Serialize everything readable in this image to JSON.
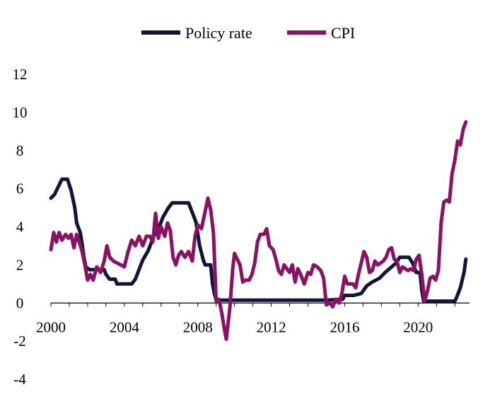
{
  "chart_data": {
    "type": "line",
    "title": "",
    "xlabel": "",
    "ylabel": "",
    "legend_position": "top-center",
    "xlim": [
      2000,
      2022.8
    ],
    "ylim": [
      -4,
      12
    ],
    "grid": false,
    "x_ticks": [
      2000,
      2004,
      2008,
      2012,
      2016,
      2020
    ],
    "x_tick_labels": [
      "2000",
      "2004",
      "2008",
      "2012",
      "2016",
      "2020"
    ],
    "y_ticks": [
      -4,
      -2,
      0,
      2,
      4,
      6,
      8,
      10,
      12
    ],
    "y_tick_labels": [
      "-4",
      "-2",
      "0",
      "2",
      "4",
      "6",
      "8",
      "10",
      "12"
    ],
    "series": [
      {
        "name": "Policy rate",
        "color": "#0f1638",
        "points": [
          [
            2000.0,
            5.5
          ],
          [
            2000.2,
            5.7
          ],
          [
            2000.4,
            6.1
          ],
          [
            2000.6,
            6.5
          ],
          [
            2000.9,
            6.5
          ],
          [
            2001.1,
            5.9
          ],
          [
            2001.3,
            5.0
          ],
          [
            2001.4,
            4.2
          ],
          [
            2001.6,
            3.7
          ],
          [
            2001.7,
            3.1
          ],
          [
            2001.8,
            2.4
          ],
          [
            2001.9,
            1.9
          ],
          [
            2002.1,
            1.75
          ],
          [
            2002.5,
            1.75
          ],
          [
            2002.9,
            1.75
          ],
          [
            2003.0,
            1.5
          ],
          [
            2003.2,
            1.25
          ],
          [
            2003.5,
            1.25
          ],
          [
            2003.6,
            1.0
          ],
          [
            2004.0,
            1.0
          ],
          [
            2004.4,
            1.0
          ],
          [
            2004.6,
            1.25
          ],
          [
            2004.8,
            1.75
          ],
          [
            2005.0,
            2.25
          ],
          [
            2005.3,
            2.75
          ],
          [
            2005.6,
            3.5
          ],
          [
            2005.9,
            4.0
          ],
          [
            2006.1,
            4.5
          ],
          [
            2006.4,
            5.0
          ],
          [
            2006.6,
            5.25
          ],
          [
            2007.0,
            5.25
          ],
          [
            2007.3,
            5.25
          ],
          [
            2007.5,
            5.25
          ],
          [
            2007.7,
            4.75
          ],
          [
            2007.9,
            4.25
          ],
          [
            2008.1,
            3.0
          ],
          [
            2008.3,
            2.25
          ],
          [
            2008.4,
            2.0
          ],
          [
            2008.7,
            2.0
          ],
          [
            2008.8,
            1.0
          ],
          [
            2008.9,
            0.5
          ],
          [
            2009.0,
            0.15
          ],
          [
            2010.0,
            0.15
          ],
          [
            2011.0,
            0.15
          ],
          [
            2012.0,
            0.15
          ],
          [
            2013.0,
            0.15
          ],
          [
            2014.0,
            0.15
          ],
          [
            2015.0,
            0.15
          ],
          [
            2015.9,
            0.2
          ],
          [
            2016.0,
            0.4
          ],
          [
            2016.5,
            0.4
          ],
          [
            2016.9,
            0.5
          ],
          [
            2017.2,
            0.9
          ],
          [
            2017.5,
            1.1
          ],
          [
            2017.9,
            1.3
          ],
          [
            2018.2,
            1.6
          ],
          [
            2018.5,
            1.85
          ],
          [
            2018.8,
            2.1
          ],
          [
            2019.0,
            2.4
          ],
          [
            2019.5,
            2.4
          ],
          [
            2019.7,
            2.1
          ],
          [
            2019.9,
            1.6
          ],
          [
            2020.1,
            1.6
          ],
          [
            2020.2,
            0.65
          ],
          [
            2020.3,
            0.1
          ],
          [
            2020.5,
            0.1
          ],
          [
            2021.0,
            0.1
          ],
          [
            2022.0,
            0.1
          ],
          [
            2022.1,
            0.3
          ],
          [
            2022.3,
            0.8
          ],
          [
            2022.5,
            1.6
          ],
          [
            2022.6,
            2.3
          ]
        ]
      },
      {
        "name": "CPI",
        "color": "#8b1163",
        "points": [
          [
            2000.0,
            2.8
          ],
          [
            2000.15,
            3.7
          ],
          [
            2000.3,
            3.2
          ],
          [
            2000.45,
            3.7
          ],
          [
            2000.6,
            3.3
          ],
          [
            2000.8,
            3.6
          ],
          [
            2000.95,
            3.4
          ],
          [
            2001.1,
            3.6
          ],
          [
            2001.25,
            2.9
          ],
          [
            2001.4,
            3.6
          ],
          [
            2001.55,
            3.2
          ],
          [
            2001.7,
            2.7
          ],
          [
            2001.85,
            2.0
          ],
          [
            2002.0,
            1.2
          ],
          [
            2002.15,
            1.5
          ],
          [
            2002.3,
            1.2
          ],
          [
            2002.5,
            1.9
          ],
          [
            2002.7,
            1.6
          ],
          [
            2002.9,
            2.2
          ],
          [
            2003.05,
            3.0
          ],
          [
            2003.2,
            2.4
          ],
          [
            2003.4,
            2.2
          ],
          [
            2003.6,
            2.1
          ],
          [
            2003.8,
            2.0
          ],
          [
            2004.0,
            1.9
          ],
          [
            2004.2,
            2.7
          ],
          [
            2004.4,
            3.3
          ],
          [
            2004.6,
            3.0
          ],
          [
            2004.8,
            3.5
          ],
          [
            2005.0,
            3.0
          ],
          [
            2005.2,
            3.5
          ],
          [
            2005.4,
            3.5
          ],
          [
            2005.55,
            3.2
          ],
          [
            2005.7,
            4.7
          ],
          [
            2005.85,
            3.4
          ],
          [
            2006.0,
            4.0
          ],
          [
            2006.2,
            3.5
          ],
          [
            2006.35,
            4.2
          ],
          [
            2006.5,
            3.8
          ],
          [
            2006.65,
            2.4
          ],
          [
            2006.8,
            2.0
          ],
          [
            2006.95,
            2.5
          ],
          [
            2007.1,
            2.7
          ],
          [
            2007.3,
            2.4
          ],
          [
            2007.5,
            2.7
          ],
          [
            2007.7,
            2.2
          ],
          [
            2007.85,
            3.5
          ],
          [
            2008.0,
            4.1
          ],
          [
            2008.2,
            3.9
          ],
          [
            2008.4,
            4.8
          ],
          [
            2008.55,
            5.5
          ],
          [
            2008.7,
            4.9
          ],
          [
            2008.85,
            3.7
          ],
          [
            2009.0,
            0.1
          ],
          [
            2009.15,
            0.2
          ],
          [
            2009.3,
            -0.5
          ],
          [
            2009.45,
            -1.4
          ],
          [
            2009.55,
            -1.9
          ],
          [
            2009.75,
            -0.2
          ],
          [
            2009.9,
            1.8
          ],
          [
            2010.0,
            2.6
          ],
          [
            2010.15,
            2.3
          ],
          [
            2010.3,
            2.0
          ],
          [
            2010.45,
            1.1
          ],
          [
            2010.6,
            1.2
          ],
          [
            2010.8,
            1.2
          ],
          [
            2010.95,
            1.5
          ],
          [
            2011.1,
            2.1
          ],
          [
            2011.25,
            3.2
          ],
          [
            2011.4,
            3.6
          ],
          [
            2011.6,
            3.6
          ],
          [
            2011.75,
            3.9
          ],
          [
            2011.9,
            3.0
          ],
          [
            2012.1,
            2.8
          ],
          [
            2012.25,
            2.3
          ],
          [
            2012.4,
            1.7
          ],
          [
            2012.55,
            1.5
          ],
          [
            2012.7,
            2.0
          ],
          [
            2012.85,
            1.8
          ],
          [
            2013.0,
            1.6
          ],
          [
            2013.15,
            2.0
          ],
          [
            2013.3,
            1.1
          ],
          [
            2013.45,
            1.8
          ],
          [
            2013.6,
            1.5
          ],
          [
            2013.8,
            1.0
          ],
          [
            2014.0,
            1.6
          ],
          [
            2014.15,
            1.5
          ],
          [
            2014.3,
            2.0
          ],
          [
            2014.5,
            1.9
          ],
          [
            2014.7,
            1.7
          ],
          [
            2014.85,
            1.3
          ],
          [
            2015.0,
            -0.1
          ],
          [
            2015.2,
            0.0
          ],
          [
            2015.35,
            -0.2
          ],
          [
            2015.5,
            0.2
          ],
          [
            2015.7,
            0.0
          ],
          [
            2015.85,
            0.5
          ],
          [
            2016.0,
            1.4
          ],
          [
            2016.15,
            1.0
          ],
          [
            2016.3,
            1.0
          ],
          [
            2016.45,
            1.0
          ],
          [
            2016.6,
            0.8
          ],
          [
            2016.75,
            1.5
          ],
          [
            2016.9,
            2.1
          ],
          [
            2017.05,
            2.7
          ],
          [
            2017.2,
            2.4
          ],
          [
            2017.35,
            1.6
          ],
          [
            2017.5,
            1.7
          ],
          [
            2017.65,
            2.2
          ],
          [
            2017.8,
            2.0
          ],
          [
            2017.95,
            2.1
          ],
          [
            2018.1,
            2.2
          ],
          [
            2018.25,
            2.4
          ],
          [
            2018.4,
            2.8
          ],
          [
            2018.55,
            2.9
          ],
          [
            2018.7,
            2.3
          ],
          [
            2018.85,
            2.2
          ],
          [
            2019.0,
            1.6
          ],
          [
            2019.15,
            1.9
          ],
          [
            2019.3,
            1.8
          ],
          [
            2019.45,
            1.7
          ],
          [
            2019.6,
            1.8
          ],
          [
            2019.75,
            1.7
          ],
          [
            2019.9,
            2.3
          ],
          [
            2020.05,
            2.5
          ],
          [
            2020.2,
            1.5
          ],
          [
            2020.35,
            0.1
          ],
          [
            2020.5,
            0.6
          ],
          [
            2020.65,
            1.3
          ],
          [
            2020.8,
            1.4
          ],
          [
            2020.95,
            1.2
          ],
          [
            2021.1,
            1.7
          ],
          [
            2021.25,
            4.2
          ],
          [
            2021.4,
            5.3
          ],
          [
            2021.55,
            5.4
          ],
          [
            2021.7,
            5.3
          ],
          [
            2021.85,
            6.8
          ],
          [
            2022.0,
            7.5
          ],
          [
            2022.15,
            8.5
          ],
          [
            2022.3,
            8.3
          ],
          [
            2022.45,
            9.1
          ],
          [
            2022.6,
            9.5
          ]
        ]
      }
    ]
  }
}
